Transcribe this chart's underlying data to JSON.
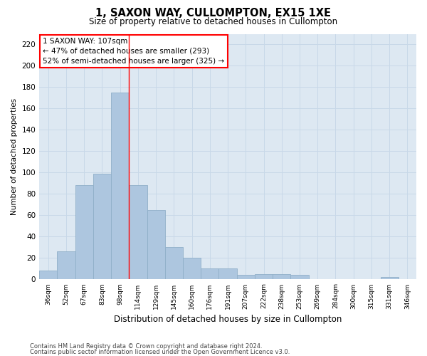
{
  "title": "1, SAXON WAY, CULLOMPTON, EX15 1XE",
  "subtitle": "Size of property relative to detached houses in Cullompton",
  "xlabel": "Distribution of detached houses by size in Cullompton",
  "ylabel": "Number of detached properties",
  "categories": [
    "36sqm",
    "52sqm",
    "67sqm",
    "83sqm",
    "98sqm",
    "114sqm",
    "129sqm",
    "145sqm",
    "160sqm",
    "176sqm",
    "191sqm",
    "207sqm",
    "222sqm",
    "238sqm",
    "253sqm",
    "269sqm",
    "284sqm",
    "300sqm",
    "315sqm",
    "331sqm",
    "346sqm"
  ],
  "values": [
    8,
    26,
    88,
    99,
    175,
    88,
    65,
    30,
    20,
    10,
    10,
    4,
    5,
    5,
    4,
    0,
    0,
    0,
    0,
    2,
    0
  ],
  "bar_color": "#adc6df",
  "bar_edgecolor": "#90afc8",
  "vline_x": 4.5,
  "vline_color": "red",
  "annotation_text": "1 SAXON WAY: 107sqm\n← 47% of detached houses are smaller (293)\n52% of semi-detached houses are larger (325) →",
  "annotation_box_edgecolor": "red",
  "ylim": [
    0,
    230
  ],
  "yticks": [
    0,
    20,
    40,
    60,
    80,
    100,
    120,
    140,
    160,
    180,
    200,
    220
  ],
  "grid_color": "#c8d8e8",
  "bg_color": "#dde8f2",
  "footer1": "Contains HM Land Registry data © Crown copyright and database right 2024.",
  "footer2": "Contains public sector information licensed under the Open Government Licence v3.0."
}
